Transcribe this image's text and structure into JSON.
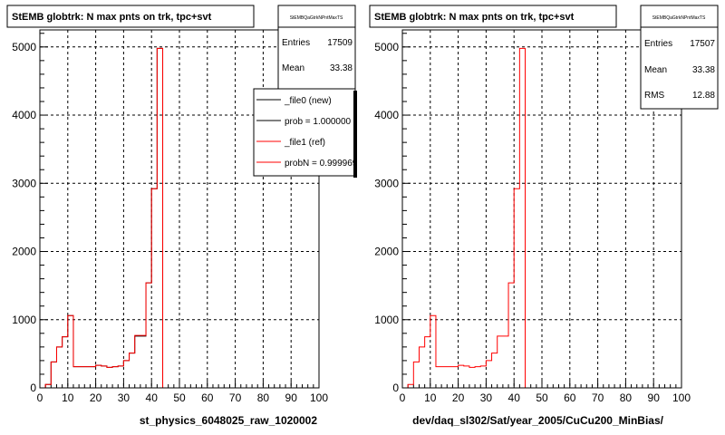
{
  "chart_data": [
    {
      "type": "histogram",
      "title": "StEMB globtrk: N max pnts on trk, tpc+svt",
      "stats": {
        "name": "StEMBQaGtrkNPntMaxTS",
        "rows": [
          {
            "label": "Entries",
            "value": "17509"
          },
          {
            "label": "Mean",
            "value": "33.38"
          }
        ]
      },
      "legend": {
        "entries": [
          {
            "label": "_file0 (new)",
            "color": "#000000"
          },
          {
            "label": "prob = 1.000000",
            "color": "#000000"
          },
          {
            "label": "_file1 (ref)",
            "color": "#ff0000"
          },
          {
            "label": "probN = 0.999969",
            "color": "#ff0000"
          }
        ]
      },
      "xlabel": "st_physics_6048025_raw_1020002",
      "ylabel": "",
      "xlim": [
        0,
        100
      ],
      "ylim": [
        0,
        5250
      ],
      "xticks": [
        "0",
        "10",
        "20",
        "30",
        "40",
        "50",
        "60",
        "70",
        "80",
        "90",
        "100"
      ],
      "yticks": [
        "0",
        "1000",
        "2000",
        "3000",
        "4000",
        "5000"
      ],
      "grid": true,
      "bin_width": 2,
      "x_edges_start": 0,
      "series": [
        {
          "color": "#000000",
          "values": [
            0,
            50,
            380,
            600,
            750,
            1060,
            310,
            310,
            310,
            310,
            330,
            320,
            300,
            310,
            320,
            400,
            510,
            760,
            760,
            1540,
            2920,
            4980,
            0,
            0,
            0,
            0,
            0,
            0,
            0,
            0,
            0,
            0,
            0,
            0,
            0,
            0,
            0,
            0,
            0,
            0,
            0,
            0,
            0,
            0,
            0,
            0,
            0,
            0,
            0,
            0
          ]
        },
        {
          "color": "#ff0000",
          "values": [
            0,
            50,
            380,
            600,
            750,
            1060,
            310,
            310,
            310,
            310,
            330,
            320,
            300,
            310,
            320,
            400,
            510,
            770,
            770,
            1540,
            2920,
            4980,
            0,
            0,
            0,
            0,
            0,
            0,
            0,
            0,
            0,
            0,
            0,
            0,
            0,
            0,
            0,
            0,
            0,
            0,
            0,
            0,
            0,
            0,
            0,
            0,
            0,
            0,
            0,
            0
          ]
        }
      ]
    },
    {
      "type": "histogram",
      "title": "StEMB globtrk: N max pnts on trk, tpc+svt",
      "stats": {
        "name": "StEMBQaGtrkNPntMaxTS",
        "rows": [
          {
            "label": "Entries",
            "value": "17507"
          },
          {
            "label": "Mean",
            "value": "33.38"
          },
          {
            "label": "RMS",
            "value": "12.88"
          }
        ]
      },
      "xlabel": "dev/daq_sl302/Sat/year_2005/CuCu200_MinBias/",
      "ylabel": "",
      "xlim": [
        0,
        100
      ],
      "ylim": [
        0,
        5250
      ],
      "xticks": [
        "0",
        "10",
        "20",
        "30",
        "40",
        "50",
        "60",
        "70",
        "80",
        "90",
        "100"
      ],
      "yticks": [
        "0",
        "1000",
        "2000",
        "3000",
        "4000",
        "5000"
      ],
      "grid": true,
      "bin_width": 2,
      "x_edges_start": 0,
      "series": [
        {
          "color": "#ff0000",
          "values": [
            0,
            50,
            380,
            600,
            750,
            1060,
            310,
            310,
            310,
            310,
            330,
            320,
            300,
            310,
            320,
            400,
            510,
            760,
            760,
            1540,
            2920,
            4980,
            0,
            0,
            0,
            0,
            0,
            0,
            0,
            0,
            0,
            0,
            0,
            0,
            0,
            0,
            0,
            0,
            0,
            0,
            0,
            0,
            0,
            0,
            0,
            0,
            0,
            0,
            0,
            0
          ]
        }
      ]
    }
  ]
}
